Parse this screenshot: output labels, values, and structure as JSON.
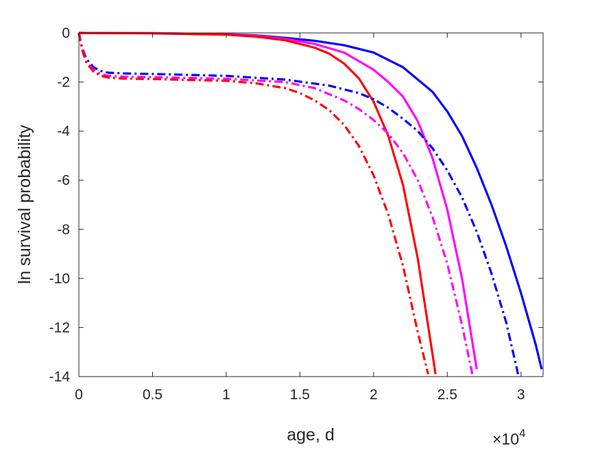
{
  "chart_data": {
    "type": "line",
    "title": "",
    "xlabel": "age, d",
    "ylabel": "ln survival probability",
    "x_exponent_label": {
      "base": "×10",
      "exp": "4"
    },
    "xlim": [
      0,
      31500
    ],
    "ylim": [
      -14,
      0
    ],
    "x_ticks": [
      0,
      5000,
      10000,
      15000,
      20000,
      25000,
      30000
    ],
    "x_tick_labels": [
      "0",
      "0.5",
      "1",
      "1.5",
      "2",
      "2.5",
      "3"
    ],
    "y_ticks": [
      0,
      -2,
      -4,
      -6,
      -8,
      -10,
      -12,
      -14
    ],
    "y_tick_labels": [
      "0",
      "-2",
      "-4",
      "-6",
      "-8",
      "-10",
      "-12",
      "-14"
    ],
    "grid": false,
    "legend": null,
    "series": [
      {
        "style": "solid",
        "color": "#0000ff",
        "x": [
          0,
          5000,
          10000,
          12000,
          14000,
          16000,
          18000,
          20000,
          22000,
          24000,
          25000,
          26000,
          27000,
          28000,
          29000,
          30000,
          31000,
          31400
        ],
        "y": [
          0,
          -0.01,
          -0.05,
          -0.1,
          -0.2,
          -0.32,
          -0.5,
          -0.8,
          -1.4,
          -2.4,
          -3.2,
          -4.2,
          -5.5,
          -7.0,
          -8.7,
          -10.6,
          -12.7,
          -13.7
        ]
      },
      {
        "style": "solid",
        "color": "#ff00ff",
        "x": [
          0,
          5000,
          10000,
          12000,
          14000,
          16000,
          18000,
          20000,
          21000,
          22000,
          23000,
          24000,
          25000,
          26000,
          27000
        ],
        "y": [
          0,
          -0.01,
          -0.05,
          -0.12,
          -0.24,
          -0.45,
          -0.8,
          -1.5,
          -2.0,
          -2.6,
          -3.6,
          -5.1,
          -7.2,
          -10.0,
          -13.7
        ]
      },
      {
        "style": "solid",
        "color": "#ff0000",
        "x": [
          0,
          5000,
          10000,
          12000,
          14000,
          16000,
          17000,
          18000,
          19000,
          20000,
          21000,
          22000,
          23000,
          24000,
          24200
        ],
        "y": [
          0,
          -0.02,
          -0.07,
          -0.15,
          -0.3,
          -0.6,
          -0.85,
          -1.25,
          -1.85,
          -2.8,
          -4.2,
          -6.2,
          -9.2,
          -13.1,
          -13.9
        ]
      },
      {
        "style": "dashdot",
        "color": "#0000ff",
        "x": [
          0,
          200,
          500,
          1000,
          1500,
          2000,
          3000,
          5000,
          10000,
          14000,
          17000,
          19000,
          20000,
          21000,
          22000,
          23000,
          24000,
          25000,
          26000,
          27000,
          28000,
          29000,
          29800
        ],
        "y": [
          0,
          -0.55,
          -1.05,
          -1.4,
          -1.55,
          -1.62,
          -1.65,
          -1.67,
          -1.75,
          -1.9,
          -2.15,
          -2.45,
          -2.7,
          -3.05,
          -3.5,
          -4.0,
          -4.7,
          -5.6,
          -6.7,
          -8.1,
          -9.8,
          -11.8,
          -13.9
        ]
      },
      {
        "style": "dashdot",
        "color": "#ff00ff",
        "x": [
          0,
          200,
          500,
          1000,
          1500,
          2000,
          3000,
          5000,
          10000,
          14000,
          16000,
          18000,
          19000,
          20000,
          21000,
          22000,
          23000,
          24000,
          25000,
          26000,
          26700
        ],
        "y": [
          0,
          -0.6,
          -1.15,
          -1.5,
          -1.68,
          -1.75,
          -1.78,
          -1.8,
          -1.87,
          -2.0,
          -2.25,
          -2.75,
          -3.1,
          -3.55,
          -4.1,
          -4.9,
          -6.0,
          -7.5,
          -9.4,
          -11.9,
          -13.9
        ]
      },
      {
        "style": "dashdot",
        "color": "#ff0000",
        "x": [
          0,
          200,
          500,
          1000,
          1500,
          2000,
          3000,
          5000,
          10000,
          12000,
          14000,
          15000,
          16000,
          17000,
          18000,
          19000,
          20000,
          21000,
          22000,
          23000,
          23700
        ],
        "y": [
          0,
          -0.65,
          -1.2,
          -1.58,
          -1.75,
          -1.82,
          -1.86,
          -1.88,
          -1.95,
          -2.05,
          -2.25,
          -2.45,
          -2.75,
          -3.15,
          -3.75,
          -4.6,
          -5.8,
          -7.4,
          -9.5,
          -12.2,
          -13.9
        ]
      }
    ]
  }
}
